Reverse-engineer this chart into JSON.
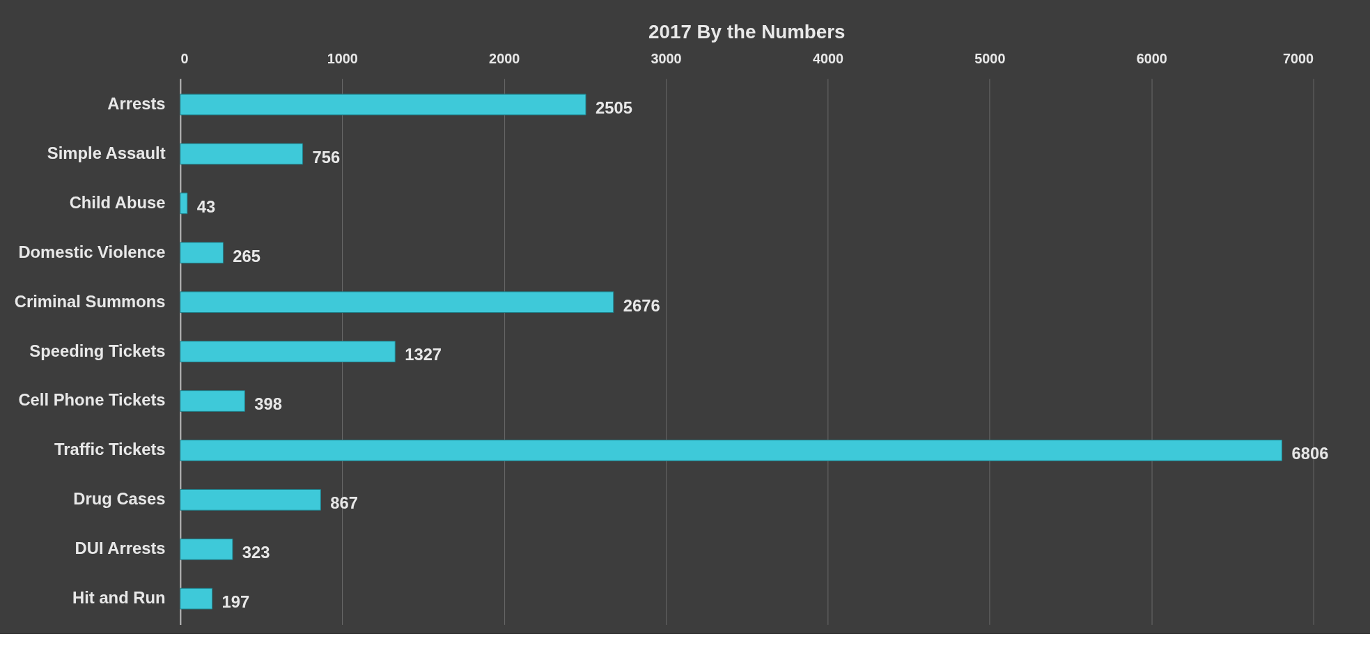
{
  "chart_data": {
    "type": "bar",
    "orientation": "horizontal",
    "title": "2017 By the Numbers",
    "categories": [
      "Arrests",
      "Simple Assault",
      "Child Abuse",
      "Domestic Violence",
      "Criminal Summons",
      "Speeding Tickets",
      "Cell Phone Tickets",
      "Traffic Tickets",
      "Drug Cases",
      "DUI Arrests",
      "Hit and Run"
    ],
    "values": [
      2505,
      756,
      43,
      265,
      2676,
      1327,
      398,
      6806,
      867,
      323,
      197
    ],
    "color": "#3ec9d9",
    "xlim": [
      0,
      7000
    ],
    "xticks": [
      0,
      1000,
      2000,
      3000,
      4000,
      5000,
      6000,
      7000
    ],
    "grid": "x",
    "data_labels": true
  }
}
